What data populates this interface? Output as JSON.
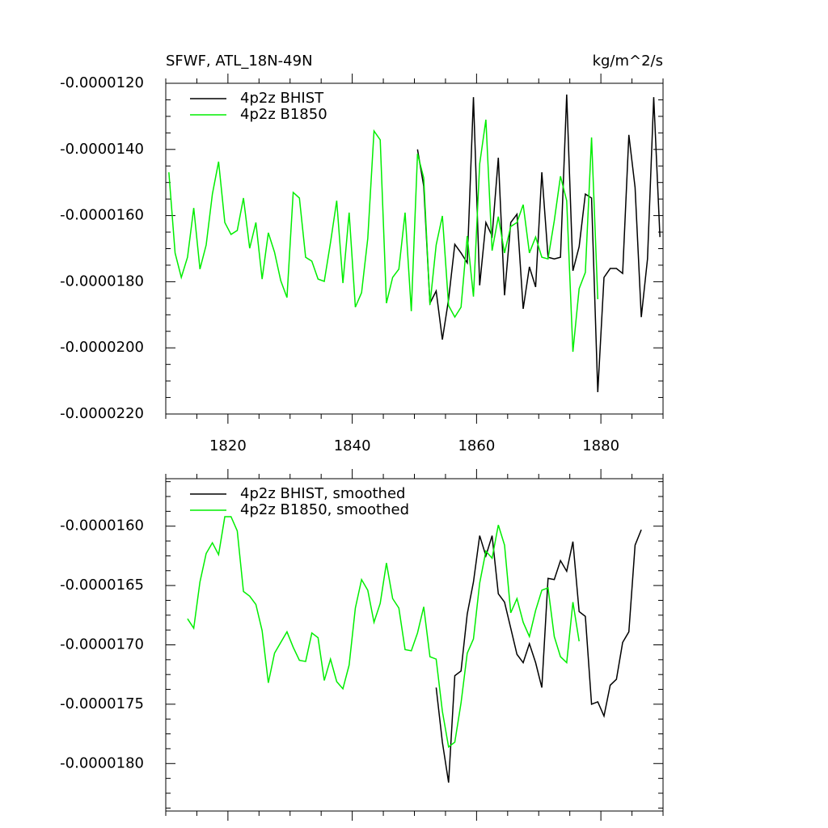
{
  "chart_data": [
    {
      "type": "line",
      "title": "SFWF, ATL_18N-49N",
      "units": "kg/m^2/s",
      "x": [
        1810.5,
        1811.5,
        1812.5,
        1813.5,
        1814.5,
        1815.5,
        1816.5,
        1817.5,
        1818.5,
        1819.5,
        1820.5,
        1821.5,
        1822.5,
        1823.5,
        1824.5,
        1825.5,
        1826.5,
        1827.5,
        1828.5,
        1829.5,
        1830.5,
        1831.5,
        1832.5,
        1833.5,
        1834.5,
        1835.5,
        1836.5,
        1837.5,
        1838.5,
        1839.5,
        1840.5,
        1841.5,
        1842.5,
        1843.5,
        1844.5,
        1845.5,
        1846.5,
        1847.5,
        1848.5,
        1849.5,
        1850.5,
        1851.5,
        1852.5,
        1853.5,
        1854.5,
        1855.5,
        1856.5,
        1857.5,
        1858.5,
        1859.5,
        1860.5,
        1861.5,
        1862.5,
        1863.5,
        1864.5,
        1865.5,
        1866.5,
        1867.5,
        1868.5,
        1869.5,
        1870.5,
        1871.5,
        1872.5,
        1873.5,
        1874.5,
        1875.5,
        1876.5,
        1877.5,
        1878.5,
        1879.5,
        1880.5,
        1881.5,
        1882.5,
        1883.5,
        1884.5,
        1885.5,
        1886.5,
        1887.5,
        1888.5,
        1889.5
      ],
      "series": [
        {
          "name": "4p2z BHIST",
          "color": "#000000",
          "values": [
            null,
            null,
            null,
            null,
            null,
            null,
            null,
            null,
            null,
            null,
            null,
            null,
            null,
            null,
            null,
            null,
            null,
            null,
            null,
            null,
            null,
            null,
            null,
            null,
            null,
            null,
            null,
            null,
            null,
            null,
            null,
            null,
            null,
            null,
            null,
            null,
            null,
            null,
            null,
            null,
            -1.4e-05,
            -1.511e-05,
            -1.865e-05,
            -1.828e-05,
            -1.975e-05,
            -1.853e-05,
            -1.687e-05,
            -1.713e-05,
            -1.743e-05,
            -1.242e-05,
            -1.811e-05,
            -1.621e-05,
            -1.662e-05,
            -1.425e-05,
            -1.841e-05,
            -1.621e-05,
            -1.596e-05,
            -1.882e-05,
            -1.755e-05,
            -1.816e-05,
            -1.469e-05,
            -1.726e-05,
            -1.731e-05,
            -1.726e-05,
            -1.234e-05,
            -1.767e-05,
            -1.694e-05,
            -1.535e-05,
            -1.547e-05,
            -2.134e-05,
            -1.787e-05,
            -1.76e-05,
            -1.76e-05,
            -1.775e-05,
            -1.356e-05,
            -1.515e-05,
            -1.907e-05,
            -1.731e-05,
            -1.242e-05,
            -1.665e-05
          ]
        },
        {
          "name": "4p2z B1850",
          "color": "#00ee00",
          "values": [
            -1.469e-05,
            -1.713e-05,
            -1.787e-05,
            -1.726e-05,
            -1.577e-05,
            -1.762e-05,
            -1.689e-05,
            -1.535e-05,
            -1.437e-05,
            -1.621e-05,
            -1.657e-05,
            -1.645e-05,
            -1.547e-05,
            -1.699e-05,
            -1.621e-05,
            -1.792e-05,
            -1.652e-05,
            -1.711e-05,
            -1.797e-05,
            -1.848e-05,
            -1.53e-05,
            -1.547e-05,
            -1.726e-05,
            -1.738e-05,
            -1.792e-05,
            -1.799e-05,
            -1.682e-05,
            -1.555e-05,
            -1.804e-05,
            -1.591e-05,
            -1.877e-05,
            -1.833e-05,
            -1.669e-05,
            -1.344e-05,
            -1.371e-05,
            -1.865e-05,
            -1.787e-05,
            -1.762e-05,
            -1.591e-05,
            -1.889e-05,
            -1.413e-05,
            -1.486e-05,
            -1.87e-05,
            -1.689e-05,
            -1.601e-05,
            -1.872e-05,
            -1.907e-05,
            -1.877e-05,
            -1.662e-05,
            -1.845e-05,
            -1.444e-05,
            -1.31e-05,
            -1.706e-05,
            -1.603e-05,
            -1.713e-05,
            -1.633e-05,
            -1.621e-05,
            -1.567e-05,
            -1.713e-05,
            -1.665e-05,
            -1.726e-05,
            -1.731e-05,
            -1.616e-05,
            -1.481e-05,
            -1.555e-05,
            -2.012e-05,
            -1.821e-05,
            -1.772e-05,
            -1.364e-05,
            -1.853e-05,
            null,
            null,
            null,
            null,
            null,
            null,
            null,
            null,
            null,
            null
          ]
        }
      ],
      "xlim": [
        1810,
        1890
      ],
      "xticks": [
        1820,
        1840,
        1860,
        1880
      ],
      "xtick_labels": true,
      "ylim": [
        -2.2e-05,
        -1.2e-05
      ],
      "yticks": [
        {
          "value": -1.2e-05,
          "label": "-0.0000120"
        },
        {
          "value": -1.4e-05,
          "label": "-0.0000140"
        },
        {
          "value": -1.6e-05,
          "label": "-0.0000160"
        },
        {
          "value": -1.8e-05,
          "label": "-0.0000180"
        },
        {
          "value": -2e-05,
          "label": "-0.0000200"
        },
        {
          "value": -2.2e-05,
          "label": "-0.0000220"
        }
      ],
      "grid": false
    },
    {
      "type": "line",
      "x": [
        1810.5,
        1811.5,
        1812.5,
        1813.5,
        1814.5,
        1815.5,
        1816.5,
        1817.5,
        1818.5,
        1819.5,
        1820.5,
        1821.5,
        1822.5,
        1823.5,
        1824.5,
        1825.5,
        1826.5,
        1827.5,
        1828.5,
        1829.5,
        1830.5,
        1831.5,
        1832.5,
        1833.5,
        1834.5,
        1835.5,
        1836.5,
        1837.5,
        1838.5,
        1839.5,
        1840.5,
        1841.5,
        1842.5,
        1843.5,
        1844.5,
        1845.5,
        1846.5,
        1847.5,
        1848.5,
        1849.5,
        1850.5,
        1851.5,
        1852.5,
        1853.5,
        1854.5,
        1855.5,
        1856.5,
        1857.5,
        1858.5,
        1859.5,
        1860.5,
        1861.5,
        1862.5,
        1863.5,
        1864.5,
        1865.5,
        1866.5,
        1867.5,
        1868.5,
        1869.5,
        1870.5,
        1871.5,
        1872.5,
        1873.5,
        1874.5,
        1875.5,
        1876.5,
        1877.5,
        1878.5,
        1879.5,
        1880.5,
        1881.5,
        1882.5,
        1883.5,
        1884.5,
        1885.5,
        1886.5,
        1887.5,
        1888.5,
        1889.5
      ],
      "series": [
        {
          "name": "4p2z BHIST, smoothed",
          "color": "#000000",
          "values": [
            null,
            null,
            null,
            null,
            null,
            null,
            null,
            null,
            null,
            null,
            null,
            null,
            null,
            null,
            null,
            null,
            null,
            null,
            null,
            null,
            null,
            null,
            null,
            null,
            null,
            null,
            null,
            null,
            null,
            null,
            null,
            null,
            null,
            null,
            null,
            null,
            null,
            null,
            null,
            null,
            null,
            null,
            null,
            -1.736e-05,
            -1.782e-05,
            -1.816e-05,
            -1.726e-05,
            -1.722e-05,
            -1.674e-05,
            -1.647e-05,
            -1.608e-05,
            -1.625e-05,
            -1.608e-05,
            -1.657e-05,
            -1.664e-05,
            -1.686e-05,
            -1.708e-05,
            -1.715e-05,
            -1.699e-05,
            -1.715e-05,
            -1.736e-05,
            -1.644e-05,
            -1.645e-05,
            -1.629e-05,
            -1.638e-05,
            -1.613e-05,
            -1.672e-05,
            -1.676e-05,
            -1.75e-05,
            -1.748e-05,
            -1.76e-05,
            -1.734e-05,
            -1.729e-05,
            -1.698e-05,
            -1.689e-05,
            -1.616e-05,
            -1.603e-05,
            null,
            null,
            null
          ]
        },
        {
          "name": "4p2z B1850, smoothed",
          "color": "#00ee00",
          "values": [
            null,
            null,
            null,
            -1.678e-05,
            -1.686e-05,
            -1.647e-05,
            -1.623e-05,
            -1.614e-05,
            -1.624e-05,
            -1.592e-05,
            -1.592e-05,
            -1.604e-05,
            -1.655e-05,
            -1.659e-05,
            -1.666e-05,
            -1.688e-05,
            -1.732e-05,
            -1.707e-05,
            -1.698e-05,
            -1.689e-05,
            -1.702e-05,
            -1.713e-05,
            -1.714e-05,
            -1.69e-05,
            -1.694e-05,
            -1.73e-05,
            -1.712e-05,
            -1.731e-05,
            -1.737e-05,
            -1.717e-05,
            -1.669e-05,
            -1.645e-05,
            -1.654e-05,
            -1.681e-05,
            -1.665e-05,
            -1.631e-05,
            -1.661e-05,
            -1.669e-05,
            -1.704e-05,
            -1.705e-05,
            -1.69e-05,
            -1.668e-05,
            -1.71e-05,
            -1.712e-05,
            -1.756e-05,
            -1.786e-05,
            -1.782e-05,
            -1.749e-05,
            -1.707e-05,
            -1.695e-05,
            -1.648e-05,
            -1.621e-05,
            -1.627e-05,
            -1.599e-05,
            -1.616e-05,
            -1.673e-05,
            -1.661e-05,
            -1.681e-05,
            -1.693e-05,
            -1.671e-05,
            -1.654e-05,
            -1.652e-05,
            -1.693e-05,
            -1.71e-05,
            -1.715e-05,
            -1.664e-05,
            -1.697e-05,
            null,
            null,
            null,
            null,
            null,
            null,
            null,
            null,
            null,
            null,
            null,
            null,
            null
          ]
        }
      ],
      "xlim": [
        1810,
        1890
      ],
      "xticks": [
        1820,
        1840,
        1860,
        1880
      ],
      "xtick_labels": false,
      "ylim": [
        -1.84e-05,
        -1.56e-05
      ],
      "yticks": [
        {
          "value": -1.6e-05,
          "label": "-0.0000160"
        },
        {
          "value": -1.65e-05,
          "label": "-0.0000165"
        },
        {
          "value": -1.7e-05,
          "label": "-0.0000170"
        },
        {
          "value": -1.75e-05,
          "label": "-0.0000175"
        },
        {
          "value": -1.8e-05,
          "label": "-0.0000180"
        }
      ],
      "grid": false
    }
  ]
}
